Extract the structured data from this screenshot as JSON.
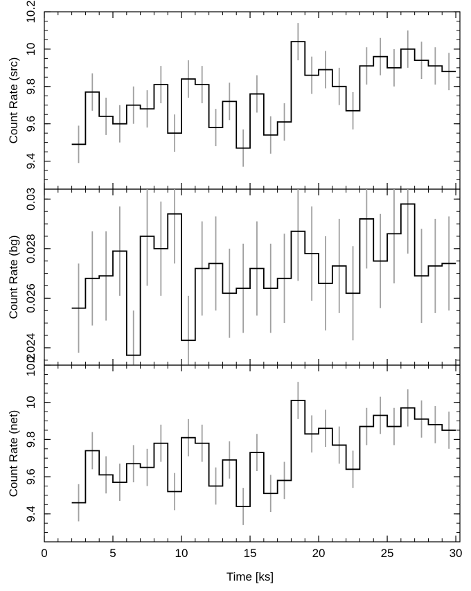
{
  "chart_data": {
    "type": "line",
    "style": "step-histogram-with-error-bars",
    "line_color": "#000000",
    "error_bar_color": "#a0a0a0",
    "x_axis": {
      "label": "Time [ks]",
      "range": [
        0,
        30.3
      ],
      "ticks": [
        0,
        5,
        10,
        15,
        20,
        25,
        30
      ],
      "tick_labels": [
        "0",
        "5",
        "10",
        "15",
        "20",
        "25",
        "30"
      ],
      "minor_step": 1
    },
    "bin_starts": [
      2.0,
      3.0,
      4.0,
      5.0,
      6.0,
      7.0,
      8.0,
      9.0,
      10.0,
      11.0,
      12.0,
      13.0,
      14.0,
      15.0,
      16.0,
      17.0,
      18.0,
      19.0,
      20.0,
      21.0,
      22.0,
      23.0,
      24.0,
      25.0,
      26.0,
      27.0,
      28.0,
      29.0
    ],
    "bin_ends": [
      3.0,
      4.0,
      5.0,
      6.0,
      7.0,
      8.0,
      9.0,
      10.0,
      11.0,
      12.0,
      13.0,
      14.0,
      15.0,
      16.0,
      17.0,
      18.0,
      19.0,
      20.0,
      21.0,
      22.0,
      23.0,
      24.0,
      25.0,
      26.0,
      27.0,
      28.0,
      29.0,
      30.0
    ],
    "panels": [
      {
        "ylabel": "Count Rate (src)",
        "ylim": [
          9.25,
          10.2
        ],
        "ticks": [
          9.4,
          9.6,
          9.8,
          10.0,
          10.2
        ],
        "tick_labels": [
          "9.4",
          "9.6",
          "9.8",
          "10",
          "10.2"
        ],
        "minor_step": 0.05,
        "values": [
          9.49,
          9.77,
          9.64,
          9.6,
          9.7,
          9.68,
          9.81,
          9.55,
          9.84,
          9.81,
          9.58,
          9.72,
          9.47,
          9.76,
          9.54,
          9.61,
          10.04,
          9.86,
          9.89,
          9.8,
          9.67,
          9.91,
          9.96,
          9.9,
          10.0,
          9.94,
          9.91,
          9.88
        ],
        "errors": [
          0.1,
          0.1,
          0.1,
          0.1,
          0.1,
          0.1,
          0.1,
          0.1,
          0.1,
          0.1,
          0.1,
          0.1,
          0.1,
          0.1,
          0.1,
          0.1,
          0.1,
          0.1,
          0.1,
          0.1,
          0.1,
          0.1,
          0.1,
          0.1,
          0.1,
          0.1,
          0.1,
          0.1
        ]
      },
      {
        "ylabel": "Count Rate (bg)",
        "ylim": [
          0.0233,
          0.0304
        ],
        "ticks": [
          0.024,
          0.026,
          0.028,
          0.03
        ],
        "tick_labels": [
          "0.024",
          "0.026",
          "0.028",
          "0.03"
        ],
        "minor_step": 0.0005,
        "values": [
          0.0256,
          0.0268,
          0.0269,
          0.0279,
          0.0237,
          0.0285,
          0.028,
          0.0294,
          0.0243,
          0.0272,
          0.0274,
          0.0262,
          0.0264,
          0.0272,
          0.0264,
          0.0268,
          0.0287,
          0.0278,
          0.0266,
          0.0273,
          0.0262,
          0.0292,
          0.0275,
          0.0286,
          0.0298,
          0.0269,
          0.0273,
          0.0274
        ],
        "errors": [
          0.0018,
          0.0019,
          0.0018,
          0.0018,
          0.0018,
          0.002,
          0.0019,
          0.002,
          0.0018,
          0.0019,
          0.0019,
          0.0018,
          0.0018,
          0.0019,
          0.0018,
          0.0018,
          0.002,
          0.0019,
          0.0019,
          0.0019,
          0.0019,
          0.002,
          0.0019,
          0.002,
          0.002,
          0.0019,
          0.0019,
          0.0019
        ]
      },
      {
        "ylabel": "Count Rate (net)",
        "ylim": [
          9.25,
          10.2
        ],
        "ticks": [
          9.4,
          9.6,
          9.8,
          10.0,
          10.2
        ],
        "tick_labels": [
          "9.4",
          "9.6",
          "9.8",
          "10",
          "10.2"
        ],
        "minor_step": 0.05,
        "values": [
          9.46,
          9.74,
          9.61,
          9.57,
          9.67,
          9.65,
          9.78,
          9.52,
          9.81,
          9.78,
          9.55,
          9.69,
          9.44,
          9.73,
          9.51,
          9.58,
          10.01,
          9.83,
          9.86,
          9.77,
          9.64,
          9.87,
          9.93,
          9.87,
          9.97,
          9.91,
          9.88,
          9.85
        ],
        "errors": [
          0.1,
          0.1,
          0.1,
          0.1,
          0.1,
          0.1,
          0.1,
          0.1,
          0.1,
          0.1,
          0.1,
          0.1,
          0.1,
          0.1,
          0.1,
          0.1,
          0.1,
          0.1,
          0.1,
          0.1,
          0.1,
          0.1,
          0.1,
          0.1,
          0.1,
          0.1,
          0.1,
          0.1
        ]
      }
    ]
  }
}
